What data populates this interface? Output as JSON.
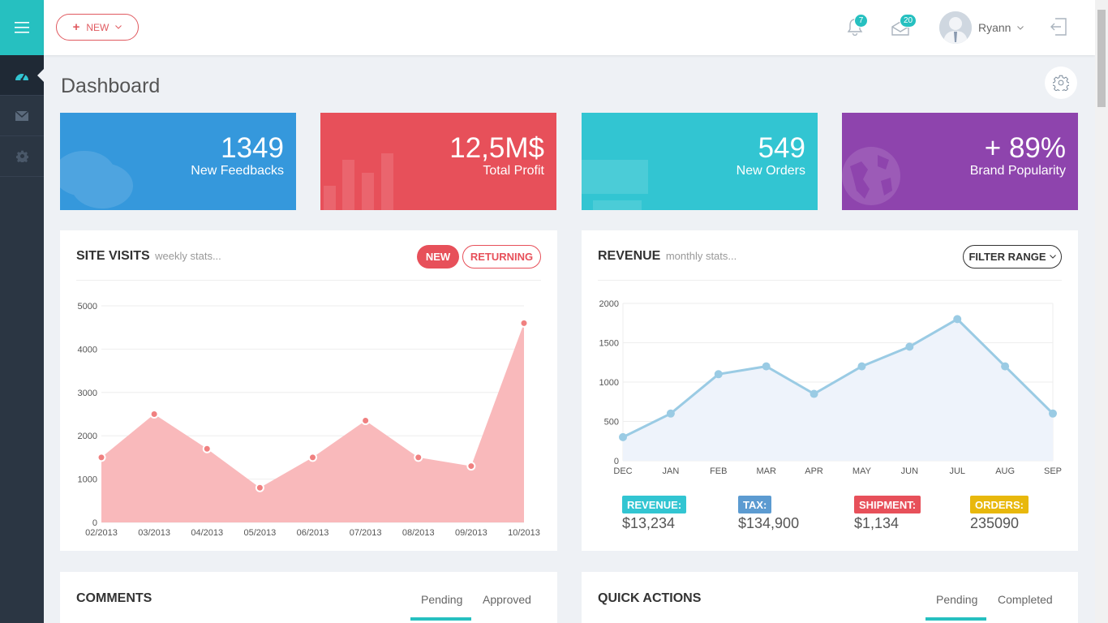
{
  "header": {
    "new_label": "NEW",
    "notifications_count": "7",
    "messages_count": "20",
    "user_name": "Ryann"
  },
  "page": {
    "title": "Dashboard"
  },
  "stats": [
    {
      "value": "1349",
      "label": "New Feedbacks",
      "color": "#3598dc"
    },
    {
      "value": "12,5M$",
      "label": "Total Profit",
      "color": "#e7505a"
    },
    {
      "value": "549",
      "label": "New Orders",
      "color": "#32c5d2"
    },
    {
      "value": "+ 89%",
      "label": "Brand Popularity",
      "color": "#8e44ad"
    }
  ],
  "site_visits": {
    "title": "SITE VISITS",
    "subtitle": "weekly stats...",
    "btn_new": "NEW",
    "btn_returning": "RETURNING"
  },
  "revenue": {
    "title": "REVENUE",
    "subtitle": "monthly stats...",
    "filter_label": "FILTER RANGE",
    "summary": [
      {
        "label": "REVENUE:",
        "value": "$13,234",
        "color": "#32c5d2"
      },
      {
        "label": "TAX:",
        "value": "$134,900",
        "color": "#5c9bd1"
      },
      {
        "label": "SHIPMENT:",
        "value": "$1,134",
        "color": "#e7505a"
      },
      {
        "label": "ORDERS:",
        "value": "235090",
        "color": "#e8b80c"
      }
    ]
  },
  "comments": {
    "title": "COMMENTS",
    "tabs": [
      "Pending",
      "Approved"
    ]
  },
  "quick_actions": {
    "title": "QUICK ACTIONS",
    "tabs": [
      "Pending",
      "Completed"
    ]
  },
  "chart_data": [
    {
      "type": "area",
      "title": "SITE VISITS",
      "categories": [
        "02/2013",
        "03/2013",
        "04/2013",
        "05/2013",
        "06/2013",
        "07/2013",
        "08/2013",
        "09/2013",
        "10/2013"
      ],
      "values": [
        1500,
        2500,
        1700,
        800,
        1500,
        2350,
        1500,
        1300,
        4600
      ],
      "ylim": [
        0,
        5000
      ],
      "yticks": [
        0,
        1000,
        2000,
        3000,
        4000,
        5000
      ],
      "color": "#f9b9bb"
    },
    {
      "type": "line",
      "title": "REVENUE",
      "categories": [
        "DEC",
        "JAN",
        "FEB",
        "MAR",
        "APR",
        "MAY",
        "JUN",
        "JUL",
        "AUG",
        "SEP"
      ],
      "values": [
        300,
        600,
        1100,
        1200,
        850,
        1200,
        1450,
        1800,
        1200,
        600
      ],
      "ylim": [
        0,
        2000
      ],
      "yticks": [
        0,
        500,
        1000,
        1500,
        2000
      ],
      "color": "#9acbe4"
    }
  ]
}
